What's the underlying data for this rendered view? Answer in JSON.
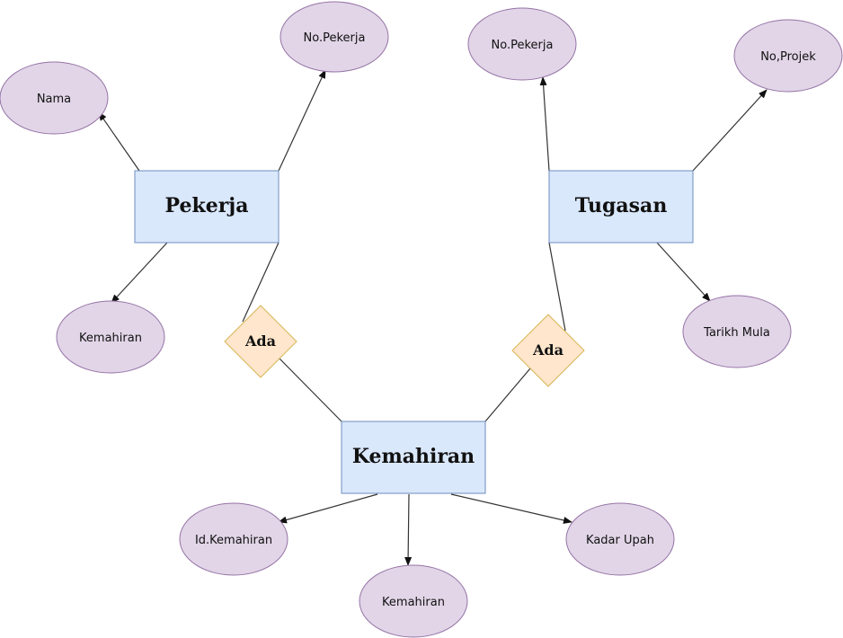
{
  "entities": {
    "pekerja": "Pekerja",
    "tugasan": "Tugasan",
    "kemahiran": "Kemahiran"
  },
  "relationships": {
    "left": "Ada",
    "right": "Ada"
  },
  "attributes": {
    "pekerja": {
      "nama": "Nama",
      "no_pekerja": "No.Pekerja",
      "kemahiran": "Kemahiran"
    },
    "tugasan": {
      "no_pekerja": "No.Pekerja",
      "no_projek": "No,Projek",
      "tarikh_mula": "Tarikh Mula"
    },
    "kemahiran": {
      "id_kemahiran": "Id.Kemahiran",
      "kemahiran": "Kemahiran",
      "kadar_upah": "Kadar Upah"
    }
  },
  "colors": {
    "entity_fill": "#dae8fc",
    "entity_stroke": "#6c8ebf",
    "relationship_fill": "#ffe6cc",
    "relationship_stroke": "#d6b656",
    "attribute_fill": "#e1d5e7",
    "attribute_stroke": "#9673a6"
  }
}
